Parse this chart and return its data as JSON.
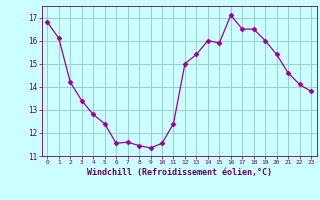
{
  "x": [
    0,
    1,
    2,
    3,
    4,
    5,
    6,
    7,
    8,
    9,
    10,
    11,
    12,
    13,
    14,
    15,
    16,
    17,
    18,
    19,
    20,
    21,
    22,
    23
  ],
  "y": [
    16.8,
    16.1,
    14.2,
    13.4,
    12.8,
    12.4,
    11.55,
    11.6,
    11.45,
    11.35,
    11.55,
    12.4,
    15.0,
    15.4,
    16.0,
    15.9,
    17.1,
    16.5,
    16.5,
    16.0,
    15.4,
    14.6,
    14.1,
    13.8
  ],
  "line_color": "#990099",
  "marker": "D",
  "marker_size": 2.5,
  "bg_color": "#ccffff",
  "grid_color": "#99cccc",
  "xlabel": "Windchill (Refroidissement éolien,°C)",
  "xlabel_color": "#660066",
  "tick_color": "#660066",
  "ylim": [
    11,
    17.5
  ],
  "xlim": [
    -0.5,
    23.5
  ],
  "yticks": [
    11,
    12,
    13,
    14,
    15,
    16,
    17
  ],
  "xticks": [
    0,
    1,
    2,
    3,
    4,
    5,
    6,
    7,
    8,
    9,
    10,
    11,
    12,
    13,
    14,
    15,
    16,
    17,
    18,
    19,
    20,
    21,
    22,
    23
  ]
}
